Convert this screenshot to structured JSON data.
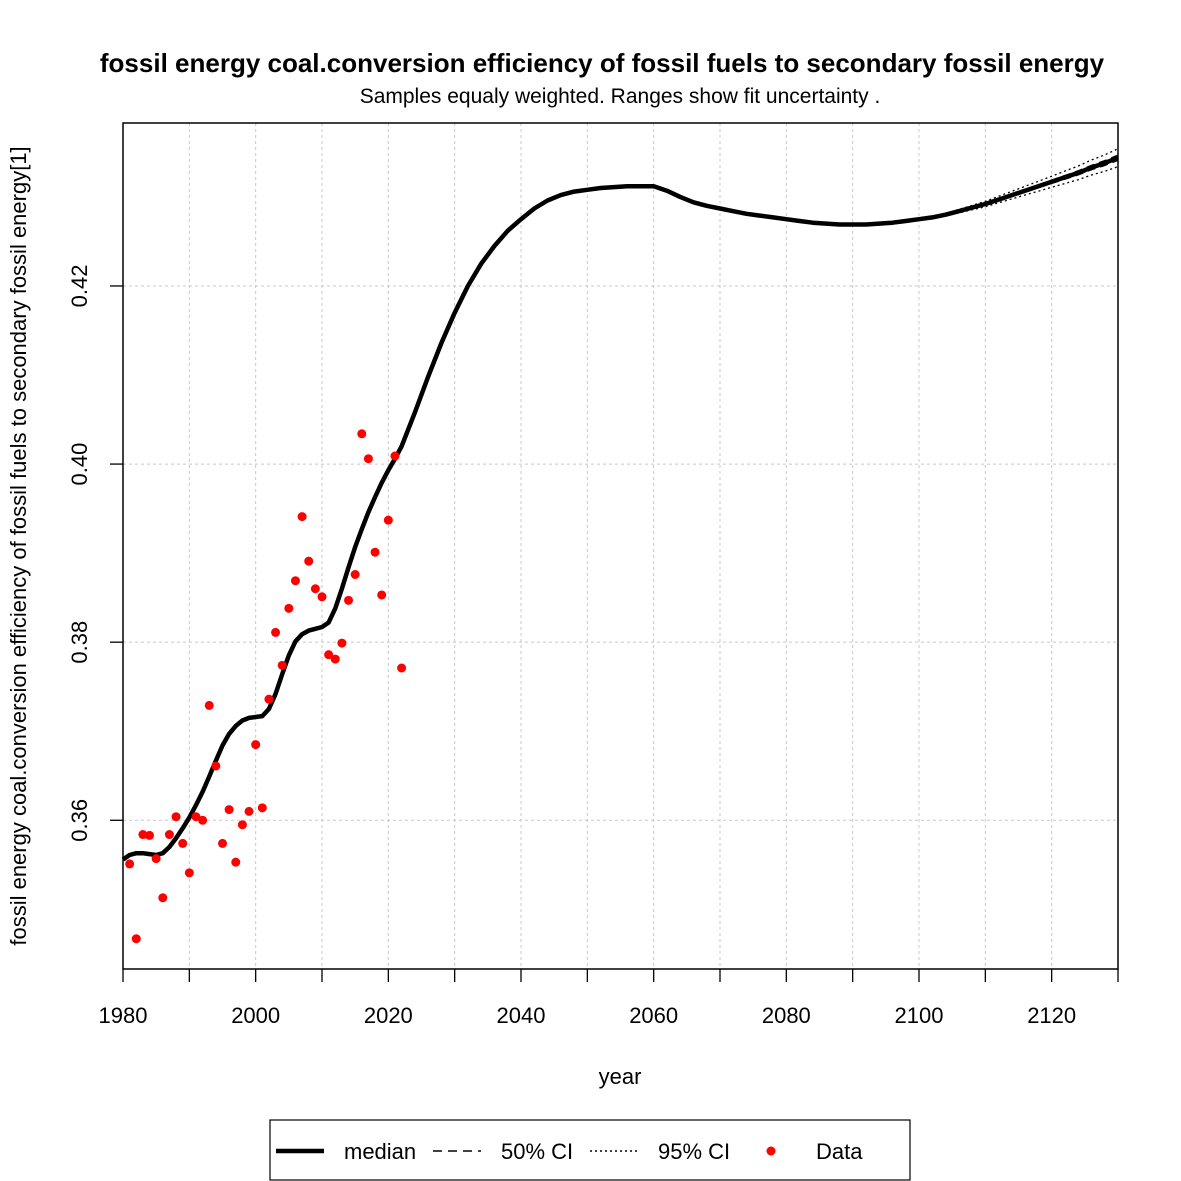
{
  "chart_data": {
    "type": "line",
    "title": "fossil energy coal.conversion efficiency of fossil fuels to secondary fossil energy",
    "subtitle": "Samples equaly weighted. Ranges show  fit uncertainty .",
    "xlabel": "year",
    "ylabel": "fossil energy coal.conversion efficiency of fossil fuels to secondary fossil energy[1]",
    "xlim": [
      1980,
      2130
    ],
    "ylim": [
      0.3433,
      0.4383
    ],
    "x_ticks": [
      1980,
      2000,
      2020,
      2040,
      2060,
      2080,
      2100,
      2120
    ],
    "x_minor_ticks": [
      1990,
      2010,
      2030,
      2050,
      2070,
      2090,
      2110,
      2130
    ],
    "y_ticks": [
      0.36,
      0.38,
      0.4,
      0.42
    ],
    "y_tick_labels": [
      "0.36",
      "0.38",
      "0.40",
      "0.42"
    ],
    "grid": true,
    "legend_position": "bottom",
    "legend": [
      {
        "label": "median",
        "style": "solid"
      },
      {
        "label": "50% CI",
        "style": "dashed"
      },
      {
        "label": "95% CI",
        "style": "dotted"
      },
      {
        "label": "Data",
        "style": "point",
        "color": "#ff0000"
      }
    ],
    "colors": {
      "median": "#000000",
      "data": "#ff0000",
      "grid": "#c8c8c8"
    },
    "median": {
      "x": [
        1980,
        1981,
        1982,
        1983,
        1984,
        1985,
        1986,
        1987,
        1988,
        1989,
        1990,
        1991,
        1992,
        1993,
        1994,
        1995,
        1996,
        1997,
        1998,
        1999,
        2000,
        2001,
        2002,
        2003,
        2004,
        2005,
        2006,
        2007,
        2008,
        2009,
        2010,
        2011,
        2012,
        2013,
        2014,
        2015,
        2016,
        2017,
        2018,
        2019,
        2020,
        2021,
        2022,
        2024,
        2026,
        2028,
        2030,
        2032,
        2034,
        2036,
        2038,
        2040,
        2042,
        2044,
        2046,
        2048,
        2050,
        2052,
        2054,
        2056,
        2058,
        2060,
        2062,
        2064,
        2066,
        2068,
        2070,
        2072,
        2074,
        2076,
        2078,
        2080,
        2082,
        2084,
        2086,
        2088,
        2090,
        2092,
        2094,
        2096,
        2098,
        2100,
        2102,
        2104,
        2106,
        2108,
        2110,
        2112,
        2114,
        2116,
        2118,
        2120,
        2122,
        2124,
        2126,
        2128,
        2130
      ],
      "y": [
        0.3556,
        0.3561,
        0.3563,
        0.3563,
        0.3562,
        0.3561,
        0.3563,
        0.357,
        0.358,
        0.3591,
        0.3603,
        0.3617,
        0.3632,
        0.3649,
        0.3667,
        0.3684,
        0.3697,
        0.3706,
        0.3712,
        0.3715,
        0.3716,
        0.3717,
        0.3725,
        0.3742,
        0.3764,
        0.3785,
        0.3801,
        0.3809,
        0.3813,
        0.3815,
        0.3817,
        0.3822,
        0.3838,
        0.386,
        0.3884,
        0.3907,
        0.3927,
        0.3946,
        0.3963,
        0.3979,
        0.3993,
        0.4006,
        0.402,
        0.4058,
        0.4098,
        0.4136,
        0.417,
        0.42,
        0.4225,
        0.4245,
        0.4262,
        0.4275,
        0.4287,
        0.4296,
        0.4302,
        0.4306,
        0.4308,
        0.431,
        0.4311,
        0.4312,
        0.4312,
        0.4312,
        0.4307,
        0.43,
        0.4294,
        0.429,
        0.4287,
        0.4284,
        0.4281,
        0.4279,
        0.4277,
        0.4275,
        0.4273,
        0.4271,
        0.427,
        0.4269,
        0.4269,
        0.4269,
        0.427,
        0.4271,
        0.4273,
        0.4275,
        0.4277,
        0.428,
        0.4284,
        0.4288,
        0.4292,
        0.4297,
        0.4302,
        0.4307,
        0.4312,
        0.4317,
        0.4322,
        0.4327,
        0.4333,
        0.4338,
        0.4344
      ]
    },
    "ci50_halfwidth_start_year": 2095,
    "ci50_halfwidth_end": 0.0003,
    "ci95_halfwidth_end": 0.001,
    "data_points": {
      "x": [
        1981,
        1982,
        1983,
        1984,
        1985,
        1986,
        1987,
        1988,
        1989,
        1990,
        1991,
        1992,
        1993,
        1994,
        1995,
        1996,
        1997,
        1998,
        1999,
        2000,
        2001,
        2002,
        2003,
        2004,
        2005,
        2006,
        2007,
        2008,
        2009,
        2010,
        2011,
        2012,
        2013,
        2014,
        2015,
        2016,
        2017,
        2018,
        2019,
        2020,
        2021,
        2022
      ],
      "y": [
        0.3551,
        0.3467,
        0.3584,
        0.3583,
        0.3557,
        0.3513,
        0.3584,
        0.3604,
        0.3574,
        0.3541,
        0.3604,
        0.36,
        0.3729,
        0.3661,
        0.3574,
        0.3612,
        0.3553,
        0.3595,
        0.361,
        0.3685,
        0.3614,
        0.3736,
        0.3811,
        0.3774,
        0.3838,
        0.3869,
        0.3941,
        0.3891,
        0.386,
        0.3851,
        0.3786,
        0.3781,
        0.3799,
        0.3847,
        0.3876,
        0.4034,
        0.4006,
        0.3901,
        0.3853,
        0.3937,
        0.4009,
        0.3771
      ]
    }
  }
}
